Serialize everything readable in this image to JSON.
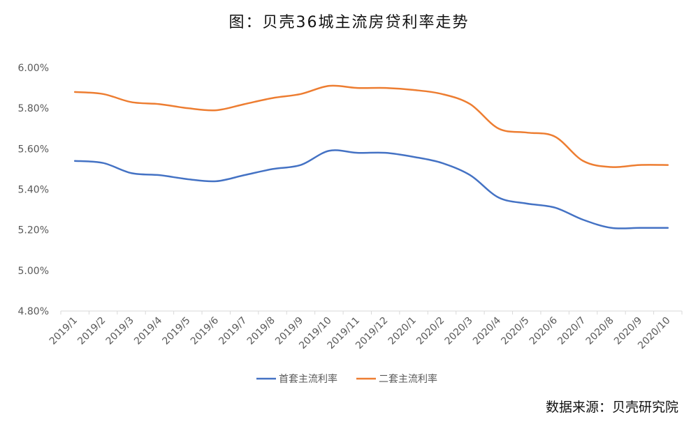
{
  "title": "图：贝壳36城主流房贷利率走势",
  "source": "数据来源：贝壳研究院",
  "chart_data": {
    "type": "line",
    "title": "图：贝壳36城主流房贷利率走势",
    "categories": [
      "2019/1",
      "2019/2",
      "2019/3",
      "2019/4",
      "2019/5",
      "2019/6",
      "2019/7",
      "2019/8",
      "2019/9",
      "2019/10",
      "2019/11",
      "2019/12",
      "2020/1",
      "2020/2",
      "2020/3",
      "2020/4",
      "2020/5",
      "2020/6",
      "2020/7",
      "2020/8",
      "2020/9",
      "2020/10"
    ],
    "y_ticks": [
      4.8,
      5.0,
      5.2,
      5.4,
      5.6,
      5.8,
      6.0
    ],
    "y_tick_labels": [
      "4.80%",
      "5.00%",
      "5.20%",
      "5.40%",
      "5.60%",
      "5.80%",
      "6.00%"
    ],
    "ylim": [
      4.8,
      6.0
    ],
    "grid": false,
    "legend_position": "bottom",
    "series": [
      {
        "name": "首套主流利率",
        "color": "#4472C4",
        "values": [
          5.54,
          5.53,
          5.48,
          5.47,
          5.45,
          5.44,
          5.47,
          5.5,
          5.52,
          5.59,
          5.58,
          5.58,
          5.56,
          5.53,
          5.47,
          5.36,
          5.33,
          5.31,
          5.25,
          5.21,
          5.21,
          5.21
        ]
      },
      {
        "name": "二套主流利率",
        "color": "#ED7D31",
        "values": [
          5.88,
          5.87,
          5.83,
          5.82,
          5.8,
          5.79,
          5.82,
          5.85,
          5.87,
          5.91,
          5.9,
          5.9,
          5.89,
          5.87,
          5.82,
          5.7,
          5.68,
          5.66,
          5.54,
          5.51,
          5.52,
          5.52
        ]
      }
    ]
  }
}
